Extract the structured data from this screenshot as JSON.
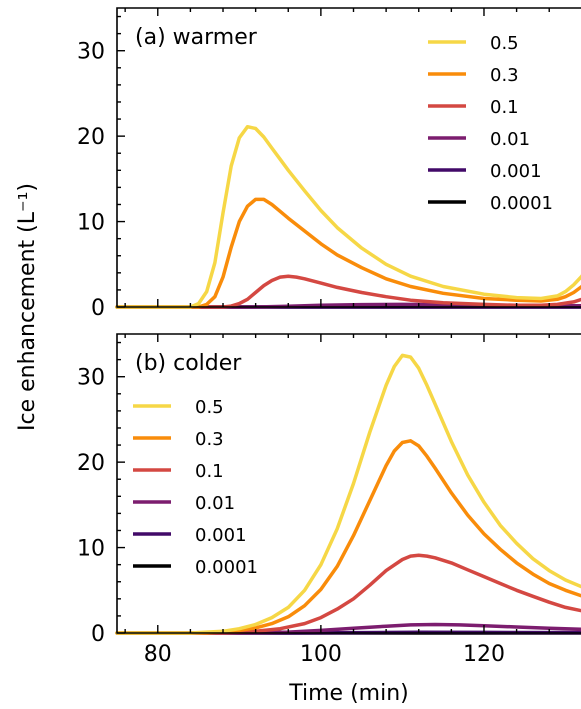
{
  "chart_data": {
    "type": "line",
    "xlabel": "Time (min)",
    "ylabel": "Ice enhancement (L⁻¹)",
    "xlim": [
      75,
      133
    ],
    "ylim": [
      0,
      35
    ],
    "x_ticks": [
      80,
      100,
      120
    ],
    "y_ticks": [
      0,
      10,
      20,
      30
    ],
    "grid": false,
    "panels": [
      {
        "label": "(a) warmer",
        "legend_position": "top-right",
        "series": [
          {
            "name": "0.5",
            "color": "#f6d746",
            "x": [
              75,
              84,
              85,
              86,
              87,
              88,
              89,
              90,
              91,
              92,
              93,
              94,
              95,
              96,
              98,
              100,
              102,
              105,
              108,
              111,
              115,
              120,
              124,
              127,
              129,
              130,
              131,
              132,
              133
            ],
            "y": [
              0,
              0,
              0.4,
              1.8,
              5.2,
              11.0,
              16.5,
              19.8,
              21.1,
              20.9,
              19.9,
              18.6,
              17.3,
              16.0,
              13.6,
              11.3,
              9.3,
              6.9,
              5.0,
              3.6,
              2.4,
              1.5,
              1.1,
              1.0,
              1.3,
              1.8,
              2.6,
              3.6,
              5.0
            ]
          },
          {
            "name": "0.3",
            "color": "#f98c0a",
            "x": [
              75,
              85,
              86,
              87,
              88,
              89,
              90,
              91,
              92,
              93,
              94,
              95,
              96,
              98,
              100,
              102,
              105,
              108,
              111,
              115,
              120,
              124,
              127,
              129,
              130,
              131,
              132,
              133
            ],
            "y": [
              0,
              0,
              0.3,
              1.2,
              3.5,
              7.0,
              10.0,
              11.8,
              12.6,
              12.6,
              12.0,
              11.2,
              10.4,
              8.9,
              7.4,
              6.1,
              4.6,
              3.3,
              2.4,
              1.6,
              1.0,
              0.8,
              0.7,
              0.9,
              1.2,
              1.7,
              2.4,
              3.3
            ]
          },
          {
            "name": "0.1",
            "color": "#d44842",
            "x": [
              75,
              88,
              89,
              90,
              91,
              92,
              93,
              94,
              95,
              96,
              97,
              98,
              100,
              102,
              105,
              108,
              111,
              115,
              120,
              124,
              127,
              129,
              131,
              133
            ],
            "y": [
              0,
              0,
              0.1,
              0.4,
              0.9,
              1.7,
              2.5,
              3.1,
              3.5,
              3.6,
              3.5,
              3.3,
              2.8,
              2.3,
              1.7,
              1.2,
              0.8,
              0.5,
              0.3,
              0.2,
              0.2,
              0.3,
              0.6,
              1.2
            ]
          },
          {
            "name": "0.01",
            "color": "#7c1d6f",
            "x": [
              75,
              92,
              96,
              100,
              105,
              110,
              115,
              120,
              125,
              130,
              133
            ],
            "y": [
              0,
              0,
              0.08,
              0.2,
              0.28,
              0.3,
              0.27,
              0.22,
              0.18,
              0.15,
              0.15
            ]
          },
          {
            "name": "0.001",
            "color": "#420a68",
            "x": [
              75,
              133
            ],
            "y": [
              0,
              0
            ]
          },
          {
            "name": "0.0001",
            "color": "#000000",
            "x": [
              75,
              133
            ],
            "y": [
              0,
              0
            ]
          }
        ]
      },
      {
        "label": "(b) colder",
        "legend_position": "top-left",
        "series": [
          {
            "name": "0.5",
            "color": "#f6d746",
            "x": [
              75,
              84,
              88,
              90,
              92,
              94,
              96,
              98,
              100,
              102,
              104,
              106,
              108,
              109,
              110,
              111,
              112,
              113,
              114,
              116,
              118,
              120,
              122,
              124,
              126,
              128,
              130,
              133
            ],
            "y": [
              0,
              0,
              0.2,
              0.5,
              1.0,
              1.8,
              3.0,
              5.0,
              8.0,
              12.2,
              17.5,
              23.5,
              29.0,
              31.2,
              32.5,
              32.3,
              31.0,
              29.0,
              26.8,
              22.4,
              18.5,
              15.3,
              12.6,
              10.5,
              8.7,
              7.3,
              6.2,
              5.0
            ]
          },
          {
            "name": "0.3",
            "color": "#f98c0a",
            "x": [
              75,
              86,
              90,
              92,
              94,
              96,
              98,
              100,
              102,
              104,
              106,
              108,
              109,
              110,
              111,
              112,
              113,
              114,
              116,
              118,
              120,
              122,
              124,
              126,
              128,
              130,
              133
            ],
            "y": [
              0,
              0,
              0.3,
              0.6,
              1.1,
              1.9,
              3.2,
              5.1,
              7.8,
              11.4,
              15.5,
              19.6,
              21.3,
              22.3,
              22.5,
              21.9,
              20.7,
              19.3,
              16.4,
              13.8,
              11.6,
              9.8,
              8.2,
              6.9,
              5.8,
              5.0,
              4.0
            ]
          },
          {
            "name": "0.1",
            "color": "#d44842",
            "x": [
              75,
              88,
              92,
              95,
              98,
              100,
              102,
              104,
              106,
              108,
              110,
              111,
              112,
              113,
              114,
              116,
              118,
              120,
              122,
              124,
              126,
              128,
              130,
              133
            ],
            "y": [
              0,
              0,
              0.2,
              0.5,
              1.1,
              1.8,
              2.8,
              4.0,
              5.6,
              7.3,
              8.6,
              9.0,
              9.1,
              9.0,
              8.8,
              8.2,
              7.4,
              6.6,
              5.8,
              5.0,
              4.3,
              3.6,
              3.0,
              2.4
            ]
          },
          {
            "name": "0.01",
            "color": "#7c1d6f",
            "x": [
              75,
              90,
              96,
              100,
              104,
              108,
              111,
              114,
              117,
              120,
              124,
              128,
              133
            ],
            "y": [
              0,
              0,
              0.1,
              0.3,
              0.55,
              0.8,
              0.95,
              1.0,
              0.95,
              0.85,
              0.7,
              0.55,
              0.4
            ]
          },
          {
            "name": "0.001",
            "color": "#420a68",
            "x": [
              75,
              96,
              105,
              112,
              120,
              133
            ],
            "y": [
              0,
              0,
              0.05,
              0.08,
              0.07,
              0.05
            ]
          },
          {
            "name": "0.0001",
            "color": "#000000",
            "x": [
              75,
              133
            ],
            "y": [
              0,
              0
            ]
          }
        ]
      }
    ]
  }
}
